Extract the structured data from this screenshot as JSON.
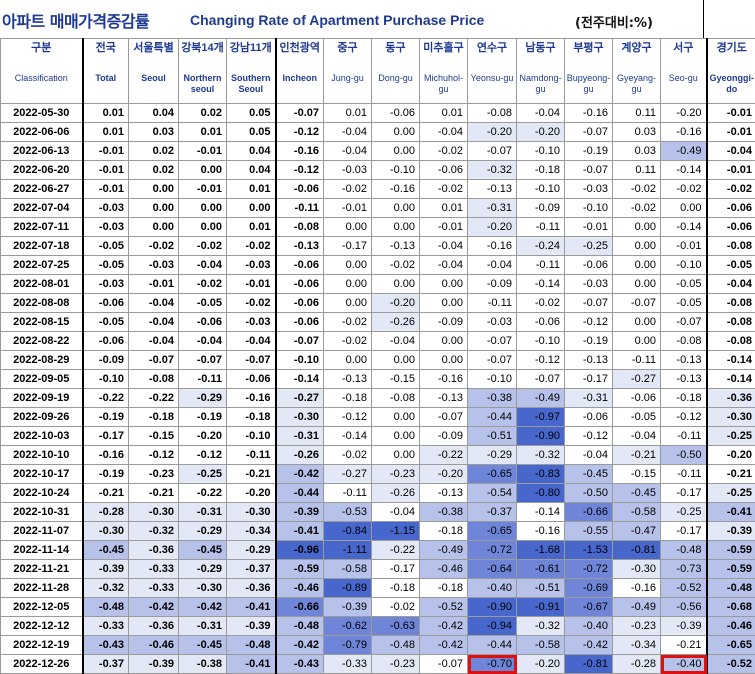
{
  "title": {
    "korean": "아파트 매매가격증감률",
    "english": "Changing Rate of Apartment Purchase Price",
    "unit": "(전주대비:%)"
  },
  "columns": [
    {
      "key": "gubun",
      "ko": "구분",
      "en": "Classification"
    },
    {
      "key": "national",
      "ko": "전국",
      "en": "Total"
    },
    {
      "key": "seoul",
      "ko": "서울특별",
      "en": "Seoul"
    },
    {
      "key": "north",
      "ko": "강북14개",
      "en": "Northern seoul"
    },
    {
      "key": "south",
      "ko": "강남11개",
      "en": "Southern Seoul"
    },
    {
      "key": "incheon",
      "ko": "인천광역",
      "en": "Incheon"
    },
    {
      "key": "junggu",
      "ko": "중구",
      "en": "Jung-gu"
    },
    {
      "key": "donggu",
      "ko": "동구",
      "en": "Dong-gu"
    },
    {
      "key": "michuhol",
      "ko": "미추홀구",
      "en": "Michuhol-gu"
    },
    {
      "key": "yeonsu",
      "ko": "연수구",
      "en": "Yeonsu-gu"
    },
    {
      "key": "namdong",
      "ko": "남동구",
      "en": "Namdong-gu"
    },
    {
      "key": "bupyeong",
      "ko": "부평구",
      "en": "Bupyeong-gu"
    },
    {
      "key": "gyeyang",
      "ko": "계양구",
      "en": "Gyeyang-gu"
    },
    {
      "key": "seogu",
      "ko": "서구",
      "en": "Seo-gu"
    },
    {
      "key": "gyeonggi",
      "ko": "경기도",
      "en": "Gyeonggi-do"
    }
  ],
  "rows": [
    {
      "date": "2022-05-30",
      "v": [
        "0.01",
        "0.04",
        "0.02",
        "0.05",
        "-0.07",
        "0.01",
        "-0.06",
        "0.01",
        "-0.08",
        "-0.04",
        "-0.16",
        "0.11",
        "-0.20",
        "-0.01"
      ]
    },
    {
      "date": "2022-06-06",
      "v": [
        "0.01",
        "0.03",
        "0.01",
        "0.05",
        "-0.12",
        "-0.04",
        "0.00",
        "-0.04",
        "-0.20",
        "-0.20",
        "-0.07",
        "0.03",
        "-0.16",
        "-0.01"
      ]
    },
    {
      "date": "2022-06-13",
      "v": [
        "-0.01",
        "0.02",
        "-0.01",
        "0.04",
        "-0.16",
        "-0.04",
        "0.00",
        "-0.02",
        "-0.07",
        "-0.10",
        "-0.19",
        "0.03",
        "-0.49",
        "-0.04"
      ]
    },
    {
      "date": "2022-06-20",
      "v": [
        "-0.01",
        "0.02",
        "0.00",
        "0.04",
        "-0.12",
        "-0.03",
        "-0.10",
        "-0.06",
        "-0.32",
        "-0.18",
        "-0.07",
        "0.11",
        "-0.14",
        "-0.01"
      ]
    },
    {
      "date": "2022-06-27",
      "v": [
        "-0.01",
        "0.00",
        "-0.01",
        "0.01",
        "-0.06",
        "-0.02",
        "-0.16",
        "-0.02",
        "-0.13",
        "-0.10",
        "-0.03",
        "-0.02",
        "-0.02",
        "-0.02"
      ]
    },
    {
      "date": "2022-07-04",
      "v": [
        "-0.03",
        "0.00",
        "0.00",
        "0.00",
        "-0.11",
        "-0.01",
        "0.00",
        "0.01",
        "-0.31",
        "-0.09",
        "-0.10",
        "-0.02",
        "0.00",
        "-0.06"
      ]
    },
    {
      "date": "2022-07-11",
      "v": [
        "-0.03",
        "0.00",
        "0.00",
        "0.01",
        "-0.08",
        "0.00",
        "0.00",
        "-0.01",
        "-0.20",
        "-0.11",
        "-0.01",
        "0.00",
        "-0.14",
        "-0.06"
      ]
    },
    {
      "date": "2022-07-18",
      "v": [
        "-0.05",
        "-0.02",
        "-0.02",
        "-0.02",
        "-0.13",
        "-0.17",
        "-0.13",
        "-0.04",
        "-0.16",
        "-0.24",
        "-0.25",
        "0.00",
        "-0.01",
        "-0.08"
      ]
    },
    {
      "date": "2022-07-25",
      "v": [
        "-0.05",
        "-0.03",
        "-0.04",
        "-0.03",
        "-0.06",
        "0.00",
        "-0.02",
        "-0.04",
        "-0.04",
        "-0.11",
        "-0.06",
        "0.00",
        "-0.10",
        "-0.05"
      ]
    },
    {
      "date": "2022-08-01",
      "v": [
        "-0.03",
        "-0.01",
        "-0.02",
        "-0.01",
        "-0.06",
        "0.00",
        "0.00",
        "0.00",
        "-0.09",
        "-0.14",
        "-0.03",
        "0.00",
        "-0.05",
        "-0.04"
      ]
    },
    {
      "date": "2022-08-08",
      "v": [
        "-0.06",
        "-0.04",
        "-0.05",
        "-0.02",
        "-0.06",
        "0.00",
        "-0.20",
        "0.00",
        "-0.11",
        "-0.02",
        "-0.07",
        "-0.07",
        "-0.05",
        "-0.08"
      ]
    },
    {
      "date": "2022-08-15",
      "v": [
        "-0.05",
        "-0.04",
        "-0.06",
        "-0.03",
        "-0.06",
        "-0.02",
        "-0.26",
        "-0.09",
        "-0.03",
        "-0.06",
        "-0.12",
        "0.00",
        "-0.07",
        "-0.08"
      ]
    },
    {
      "date": "2022-08-22",
      "v": [
        "-0.06",
        "-0.04",
        "-0.04",
        "-0.04",
        "-0.07",
        "-0.02",
        "-0.04",
        "0.00",
        "-0.07",
        "-0.10",
        "-0.19",
        "0.00",
        "-0.08",
        "-0.08"
      ]
    },
    {
      "date": "2022-08-29",
      "v": [
        "-0.09",
        "-0.07",
        "-0.07",
        "-0.07",
        "-0.10",
        "0.00",
        "0.00",
        "0.00",
        "-0.07",
        "-0.12",
        "-0.13",
        "-0.11",
        "-0.13",
        "-0.14"
      ]
    },
    {
      "date": "2022-09-05",
      "v": [
        "-0.10",
        "-0.08",
        "-0.11",
        "-0.06",
        "-0.14",
        "-0.13",
        "-0.15",
        "-0.16",
        "-0.10",
        "-0.07",
        "-0.17",
        "-0.27",
        "-0.13",
        "-0.14"
      ]
    },
    {
      "date": "2022-09-19",
      "v": [
        "-0.22",
        "-0.22",
        "-0.29",
        "-0.16",
        "-0.27",
        "-0.18",
        "-0.08",
        "-0.13",
        "-0.38",
        "-0.49",
        "-0.31",
        "-0.06",
        "-0.18",
        "-0.36"
      ]
    },
    {
      "date": "2022-09-26",
      "v": [
        "-0.19",
        "-0.18",
        "-0.19",
        "-0.18",
        "-0.30",
        "-0.12",
        "0.00",
        "-0.07",
        "-0.44",
        "-0.97",
        "-0.06",
        "-0.05",
        "-0.12",
        "-0.30"
      ]
    },
    {
      "date": "2022-10-03",
      "v": [
        "-0.17",
        "-0.15",
        "-0.20",
        "-0.10",
        "-0.31",
        "-0.14",
        "0.00",
        "-0.09",
        "-0.51",
        "-0.90",
        "-0.12",
        "-0.04",
        "-0.11",
        "-0.25"
      ]
    },
    {
      "date": "2022-10-10",
      "v": [
        "-0.16",
        "-0.12",
        "-0.12",
        "-0.11",
        "-0.26",
        "-0.02",
        "0.00",
        "-0.22",
        "-0.29",
        "-0.32",
        "-0.04",
        "-0.21",
        "-0.50",
        "-0.20"
      ]
    },
    {
      "date": "2022-10-17",
      "v": [
        "-0.19",
        "-0.23",
        "-0.25",
        "-0.21",
        "-0.42",
        "-0.27",
        "-0.23",
        "-0.20",
        "-0.65",
        "-0.83",
        "-0.45",
        "-0.15",
        "-0.11",
        "-0.21"
      ]
    },
    {
      "date": "2022-10-24",
      "v": [
        "-0.21",
        "-0.21",
        "-0.22",
        "-0.20",
        "-0.44",
        "-0.11",
        "-0.26",
        "-0.13",
        "-0.54",
        "-0.80",
        "-0.50",
        "-0.45",
        "-0.17",
        "-0.25"
      ]
    },
    {
      "date": "2022-10-31",
      "v": [
        "-0.28",
        "-0.30",
        "-0.31",
        "-0.30",
        "-0.39",
        "-0.53",
        "-0.04",
        "-0.38",
        "-0.37",
        "-0.14",
        "-0.66",
        "-0.58",
        "-0.25",
        "-0.41"
      ]
    },
    {
      "date": "2022-11-07",
      "v": [
        "-0.30",
        "-0.32",
        "-0.29",
        "-0.34",
        "-0.41",
        "-0.84",
        "-1.15",
        "-0.18",
        "-0.65",
        "-0.16",
        "-0.55",
        "-0.47",
        "-0.17",
        "-0.39"
      ]
    },
    {
      "date": "2022-11-14",
      "v": [
        "-0.45",
        "-0.36",
        "-0.45",
        "-0.29",
        "-0.96",
        "-1.11",
        "-0.22",
        "-0.49",
        "-0.72",
        "-1.68",
        "-1.53",
        "-0.81",
        "-0.48",
        "-0.59"
      ]
    },
    {
      "date": "2022-11-21",
      "v": [
        "-0.39",
        "-0.33",
        "-0.29",
        "-0.37",
        "-0.59",
        "-0.58",
        "-0.17",
        "-0.46",
        "-0.64",
        "-0.61",
        "-0.72",
        "-0.30",
        "-0.73",
        "-0.59"
      ]
    },
    {
      "date": "2022-11-28",
      "v": [
        "-0.32",
        "-0.33",
        "-0.30",
        "-0.36",
        "-0.46",
        "-0.89",
        "-0.18",
        "-0.18",
        "-0.40",
        "-0.51",
        "-0.69",
        "-0.16",
        "-0.52",
        "-0.48"
      ]
    },
    {
      "date": "2022-12-05",
      "v": [
        "-0.48",
        "-0.42",
        "-0.42",
        "-0.41",
        "-0.66",
        "-0.39",
        "-0.02",
        "-0.52",
        "-0.90",
        "-0.91",
        "-0.67",
        "-0.49",
        "-0.56",
        "-0.68"
      ]
    },
    {
      "date": "2022-12-12",
      "v": [
        "-0.33",
        "-0.36",
        "-0.31",
        "-0.39",
        "-0.48",
        "-0.62",
        "-0.63",
        "-0.42",
        "-0.94",
        "-0.32",
        "-0.40",
        "-0.23",
        "-0.39",
        "-0.46"
      ]
    },
    {
      "date": "2022-12-19",
      "v": [
        "-0.43",
        "-0.46",
        "-0.45",
        "-0.48",
        "-0.42",
        "-0.79",
        "-0.48",
        "-0.42",
        "-0.44",
        "-0.58",
        "-0.42",
        "-0.34",
        "-0.21",
        "-0.65"
      ]
    },
    {
      "date": "2022-12-26",
      "v": [
        "-0.37",
        "-0.39",
        "-0.38",
        "-0.41",
        "-0.43",
        "-0.33",
        "-0.23",
        "-0.07",
        "-0.70",
        "-0.20",
        "-0.81",
        "-0.28",
        "-0.40",
        "-0.52"
      ]
    }
  ],
  "highlighted_cells": [
    {
      "date": "2022-12-26",
      "column": "yeonsu",
      "value": "-0.70",
      "border_color": "#e01010"
    },
    {
      "date": "2022-12-26",
      "column": "seogu",
      "value": "-0.40",
      "border_color": "#e01010"
    }
  ],
  "colors": {
    "header_text": "#1f3a93",
    "highlight_border": "#e01010",
    "shade_light": "#e3e8f6",
    "shade_mid": "#b6c2ea",
    "shade_dark": "#6f86d8",
    "shade_darkest": "#4767cc"
  }
}
